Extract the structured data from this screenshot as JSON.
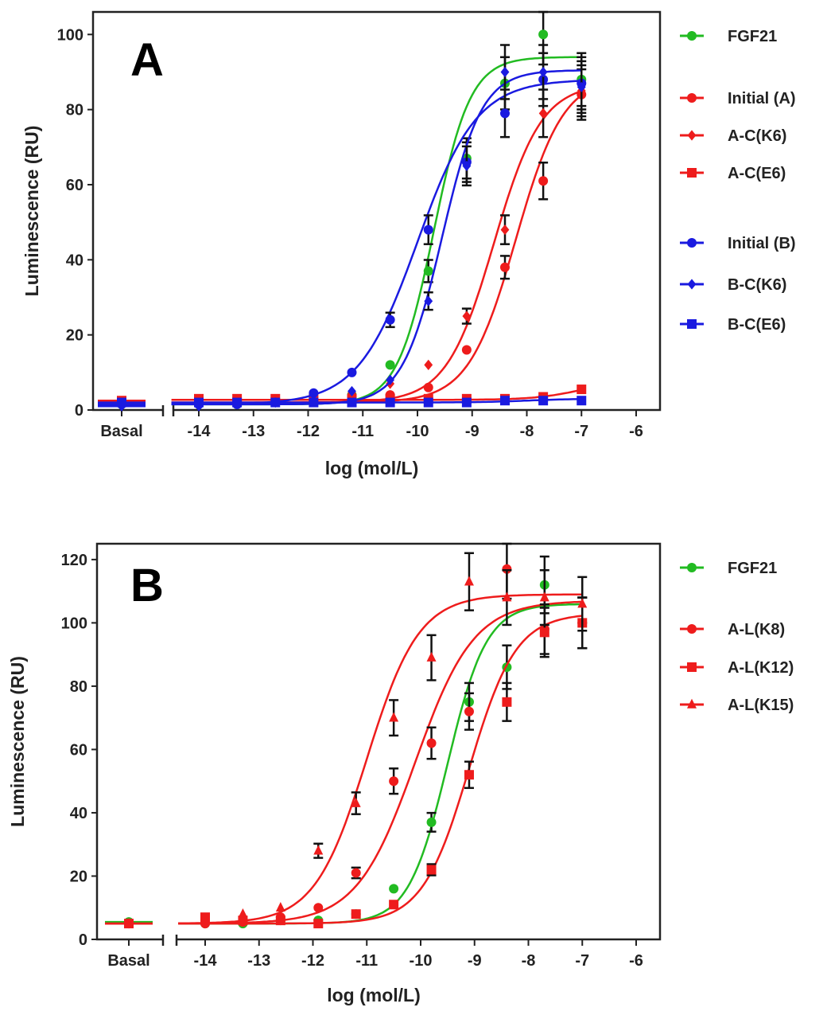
{
  "chart_data": [
    {
      "type": "line",
      "panel_label": "A",
      "xlabel": "log (mol/L)",
      "ylabel": "Luminescence (RU)",
      "xlim": [
        -14.5,
        -5.5
      ],
      "ylim": [
        0,
        106
      ],
      "x_ticks": [
        "-14",
        "-13",
        "-12",
        "-11",
        "-10",
        "-9",
        "-8",
        "-7",
        "-6"
      ],
      "y_ticks": [
        "0",
        "20",
        "40",
        "60",
        "80",
        "100"
      ],
      "basal_label": "Basal",
      "x": [
        -14.0,
        -13.3,
        -12.6,
        -11.9,
        -11.2,
        -10.5,
        -9.8,
        -9.1,
        -8.4,
        -7.7,
        -7.0
      ],
      "legend_position": "right",
      "series": [
        {
          "name": "FGF21",
          "color": "#22bb22",
          "marker": "circle",
          "basal": 1.5,
          "values": [
            1.5,
            1.5,
            2,
            2.5,
            4,
            12,
            37,
            67,
            87,
            100,
            88
          ],
          "fit": {
            "bottom": 1.5,
            "top": 94,
            "logEC50": -9.7,
            "hill": 1.3
          },
          "legend_group": 0
        },
        {
          "name": "Initial (A)",
          "color": "#ee1c1c",
          "marker": "circle",
          "basal": 2,
          "values": [
            2,
            2,
            2,
            2.5,
            3,
            4,
            6,
            16,
            38,
            61,
            84
          ],
          "fit": {
            "bottom": 2,
            "top": 89,
            "logEC50": -8.2,
            "hill": 1.0
          },
          "legend_group": 1
        },
        {
          "name": "A-C(K6)",
          "color": "#ee1c1c",
          "marker": "diamond",
          "basal": 2,
          "values": [
            2,
            2,
            2.5,
            3,
            4.5,
            7,
            12,
            25,
            48,
            79,
            85
          ],
          "fit": {
            "bottom": 2,
            "top": 87,
            "logEC50": -8.6,
            "hill": 1.0
          },
          "legend_group": 1
        },
        {
          "name": "A-C(E6)",
          "color": "#ee1c1c",
          "marker": "square",
          "basal": 2.5,
          "values": [
            3,
            3,
            3,
            3,
            3,
            3,
            3,
            3,
            3,
            3.5,
            5.5
          ],
          "fit": {
            "bottom": 2.7,
            "top": 8,
            "logEC50": -7.0,
            "hill": 1.0
          },
          "legend_group": 1
        },
        {
          "name": "Initial (B)",
          "color": "#1a1ae0",
          "marker": "circle",
          "basal": 1.5,
          "values": [
            1.5,
            1.5,
            2,
            4.5,
            10,
            24,
            48,
            66,
            79,
            88,
            87
          ],
          "fit": {
            "bottom": 1.5,
            "top": 88,
            "logEC50": -10.0,
            "hill": 0.8
          },
          "legend_group": 2
        },
        {
          "name": "B-C(K6)",
          "color": "#1a1ae0",
          "marker": "diamond",
          "basal": 1,
          "values": [
            1,
            1.5,
            2,
            2.5,
            5,
            8,
            29,
            65,
            90,
            90,
            86
          ],
          "fit": {
            "bottom": 1.5,
            "top": 90.5,
            "logEC50": -9.55,
            "hill": 1.2
          },
          "legend_group": 2
        },
        {
          "name": "B-C(E6)",
          "color": "#1a1ae0",
          "marker": "square",
          "basal": 2,
          "values": [
            2,
            2,
            2,
            2,
            2,
            2,
            2,
            2,
            2.5,
            2.5,
            2.5
          ],
          "fit": {
            "bottom": 2,
            "top": 3,
            "logEC50": -8.0,
            "hill": 1.0
          },
          "legend_group": 2
        }
      ]
    },
    {
      "type": "line",
      "panel_label": "B",
      "xlabel": "log (mol/L)",
      "ylabel": "Luminescence (RU)",
      "xlim": [
        -14.5,
        -5.5
      ],
      "ylim": [
        0,
        125
      ],
      "x_ticks": [
        "-14",
        "-13",
        "-12",
        "-11",
        "-10",
        "-9",
        "-8",
        "-7",
        "-6"
      ],
      "y_ticks": [
        "0",
        "20",
        "40",
        "60",
        "80",
        "100",
        "120"
      ],
      "basal_label": "Basal",
      "x": [
        -14.0,
        -13.3,
        -12.6,
        -11.9,
        -11.2,
        -10.5,
        -9.8,
        -9.1,
        -8.4,
        -7.7,
        -7.0
      ],
      "legend_position": "right",
      "series": [
        {
          "name": "FGF21",
          "color": "#22bb22",
          "marker": "circle",
          "basal": 5.5,
          "values": [
            5,
            5,
            6,
            6,
            8,
            16,
            37,
            75,
            86,
            112,
            100
          ],
          "fit": {
            "bottom": 5,
            "top": 106,
            "logEC50": -9.5,
            "hill": 1.2
          },
          "legend_group": 0
        },
        {
          "name": "A-L(K8)",
          "color": "#ee1c1c",
          "marker": "circle",
          "basal": 5,
          "values": [
            5,
            5.5,
            7,
            10,
            21,
            50,
            62,
            72,
            117,
            98,
            100
          ],
          "fit": {
            "bottom": 5,
            "top": 107,
            "logEC50": -10.1,
            "hill": 0.8
          },
          "legend_group": 1
        },
        {
          "name": "A-L(K12)",
          "color": "#ee1c1c",
          "marker": "square",
          "basal": 5,
          "values": [
            7,
            6,
            6,
            5,
            8,
            11,
            22,
            52,
            75,
            97,
            100
          ],
          "fit": {
            "bottom": 5,
            "top": 103,
            "logEC50": -9.1,
            "hill": 1.0
          },
          "legend_group": 1
        },
        {
          "name": "A-L(K15)",
          "color": "#ee1c1c",
          "marker": "triangle",
          "basal": 5,
          "values": [
            6,
            8,
            10,
            28,
            43,
            70,
            89,
            113,
            108,
            108,
            106
          ],
          "fit": {
            "bottom": 5,
            "top": 109,
            "logEC50": -11.0,
            "hill": 0.9
          },
          "legend_group": 1
        }
      ]
    }
  ]
}
